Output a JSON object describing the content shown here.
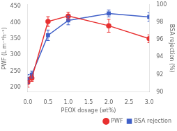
{
  "chart_data": {
    "type": "line",
    "x": [
      0.0,
      0.1,
      0.5,
      1.0,
      2.0,
      3.0
    ],
    "xlabel": "PEOX dosage (wt%)",
    "ylabel": "PWF (L m⁻²h⁻¹)",
    "y2label": "BSA rejection (%)",
    "xlim": [
      0,
      3
    ],
    "xticks": [
      {
        "value": 0,
        "label": "0.0"
      },
      0.5,
      {
        "value": 1,
        "label": "1.0"
      },
      1.5,
      {
        "value": 2,
        "label": "2.0"
      },
      2.5,
      {
        "value": 3,
        "label": "3.0"
      }
    ],
    "ylim": [
      185,
      455
    ],
    "yticks": [
      200,
      250,
      300,
      350,
      400,
      450
    ],
    "y2lim": [
      90,
      100
    ],
    "y2ticks": [
      90,
      92,
      94,
      96,
      98,
      100
    ],
    "grid": false,
    "legend": "lower right",
    "series": [
      {
        "name": "PWF",
        "color": "#e83030",
        "marker": "circle",
        "line_style": "solid",
        "values": [
          215,
          228,
          403,
          420,
          390,
          350
        ],
        "errors": [
          15,
          10,
          15,
          12,
          20,
          12
        ]
      },
      {
        "name": "BSA rejection",
        "color": "#4060c8",
        "marker": "square",
        "line_style": "solid",
        "axis": "y2",
        "values": [
          91.5,
          92.0,
          96.5,
          98.2,
          99.0,
          98.6
        ],
        "errors": [
          0.5,
          0.4,
          0.6,
          0.5,
          0.4,
          0.5
        ]
      }
    ]
  }
}
